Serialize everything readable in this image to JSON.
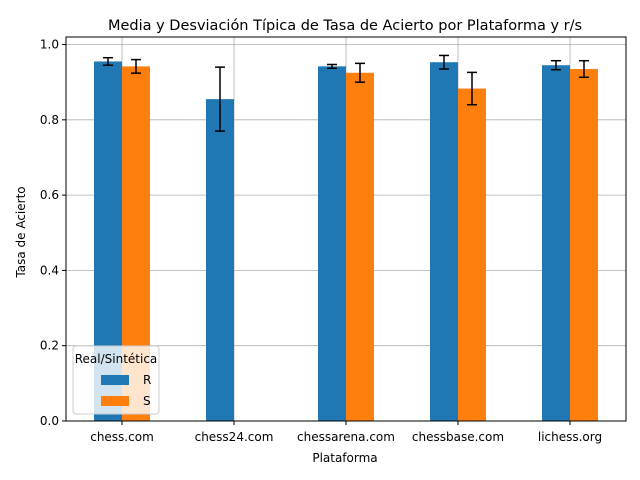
{
  "chart_data": {
    "type": "bar",
    "title": "Media y Desviación Típica de Tasa de Acierto por Plataforma y r/s",
    "xlabel": "Plataforma",
    "ylabel": "Tasa de Acierto",
    "categories": [
      "chess.com",
      "chess24.com",
      "chessarena.com",
      "chessbase.com",
      "lichess.org"
    ],
    "ylim": [
      0,
      1.02
    ],
    "yticks": [
      0.0,
      0.2,
      0.4,
      0.6,
      0.8,
      1.0
    ],
    "ytick_labels": [
      "0.0",
      "0.2",
      "0.4",
      "0.6",
      "0.8",
      "1.0"
    ],
    "grid": true,
    "legend": {
      "title": "Real/Sintética",
      "placement": "lower-left"
    },
    "series": [
      {
        "name": "R",
        "color": "#1f77b4",
        "values": [
          0.955,
          0.855,
          0.942,
          0.953,
          0.945
        ],
        "errors": [
          0.01,
          0.085,
          0.005,
          0.018,
          0.012
        ]
      },
      {
        "name": "S",
        "color": "#ff7f0e",
        "values": [
          0.942,
          null,
          0.925,
          0.883,
          0.935
        ],
        "errors": [
          0.018,
          null,
          0.025,
          0.043,
          0.022
        ]
      }
    ]
  }
}
